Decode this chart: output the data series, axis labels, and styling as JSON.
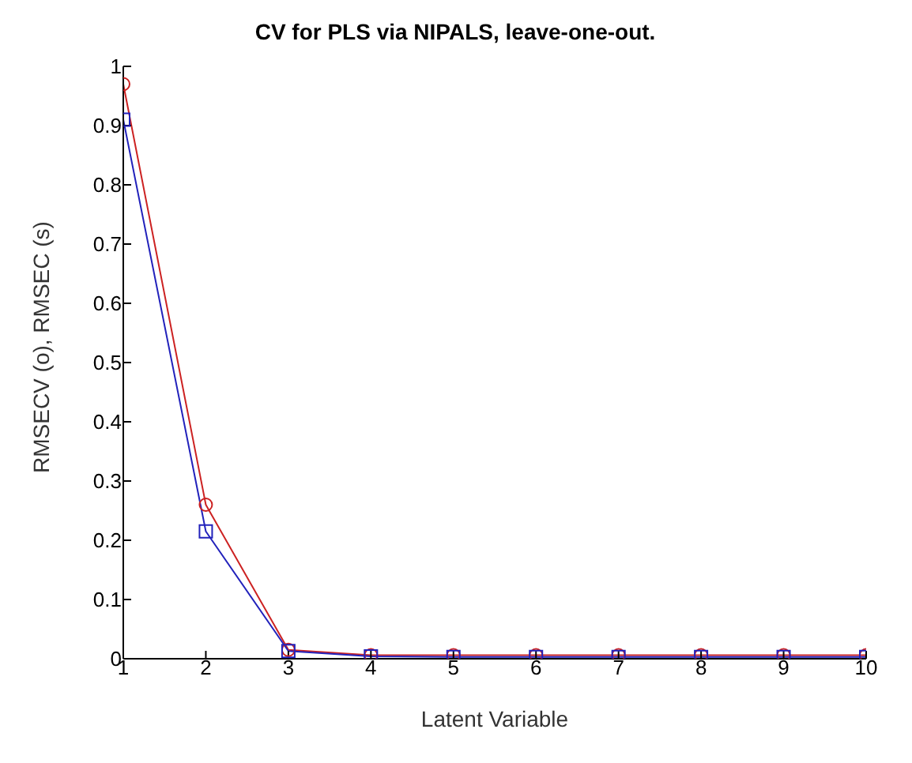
{
  "chart_data": {
    "type": "line",
    "title": "CV for PLS via NIPALS, leave-one-out.",
    "xlabel": "Latent Variable",
    "ylabel": "RMSECV (o), RMSEC (s)",
    "x": [
      1,
      2,
      3,
      4,
      5,
      6,
      7,
      8,
      9,
      10
    ],
    "series": [
      {
        "color": "#cc2222",
        "marker": "circle",
        "values": [
          0.97,
          0.26,
          0.015,
          0.006,
          0.006,
          0.006,
          0.006,
          0.006,
          0.006,
          0.006
        ]
      },
      {
        "color": "#2222bb",
        "marker": "square",
        "values": [
          0.91,
          0.215,
          0.013,
          0.004,
          0.003,
          0.003,
          0.003,
          0.003,
          0.003,
          0.003
        ]
      }
    ],
    "xlim": [
      1,
      10
    ],
    "xticks": [
      1,
      2,
      3,
      4,
      5,
      6,
      7,
      8,
      9,
      10
    ],
    "ylim": [
      0,
      1
    ],
    "yticks": [
      0,
      0.1,
      0.2,
      0.3,
      0.4,
      0.5,
      0.6,
      0.7,
      0.8,
      0.9,
      1
    ],
    "grid": false,
    "legend": false,
    "line_style": "solid"
  }
}
